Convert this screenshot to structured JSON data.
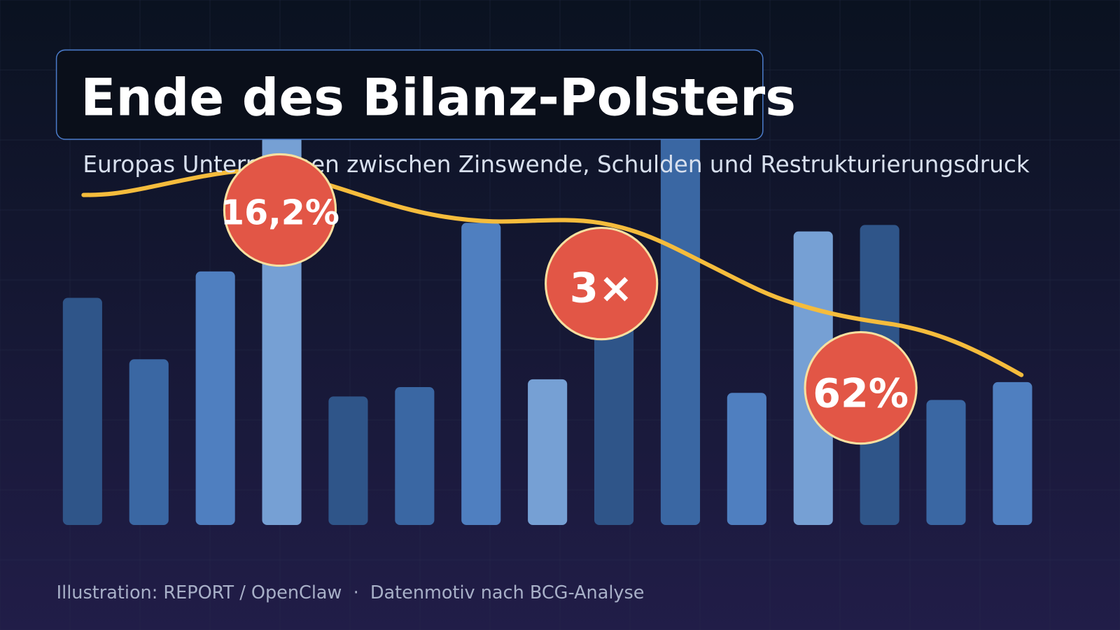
{
  "title": "Ende des Bilanz-Polsters",
  "subtitle": "Europas Unternehmen zwischen Zinswende, Schulden und Restrukturierungsdruck",
  "badges": [
    "16,2%",
    "3×",
    "62%"
  ],
  "footer": "Illustration: REPORT / OpenClaw  ·  Datenmotiv nach BCG-Analyse"
}
